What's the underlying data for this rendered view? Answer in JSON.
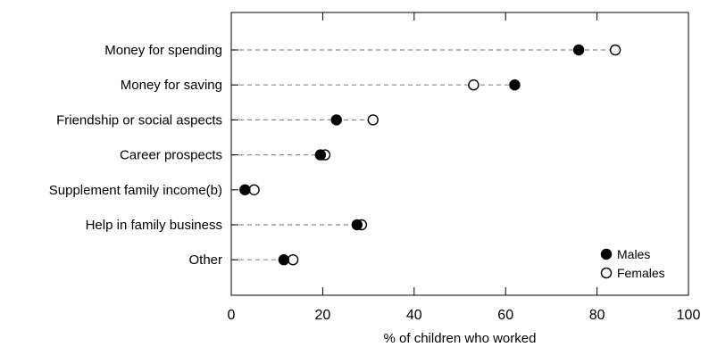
{
  "chart_data": {
    "type": "scatter",
    "subtype": "dot-plot",
    "title": "",
    "xlabel": "% of children who worked",
    "ylabel": "",
    "xlim": [
      0,
      100
    ],
    "xticks": [
      "0",
      "20",
      "40",
      "60",
      "80",
      "100"
    ],
    "grid": false,
    "legend_position": "bottom-right",
    "categories": [
      "Money for spending",
      "Money for saving",
      "Friendship or social aspects",
      "Career prospects",
      "Supplement family income(b)",
      "Help in family business",
      "Other"
    ],
    "series": [
      {
        "name": "Males",
        "marker": "filled-circle",
        "color": "#000000",
        "values": [
          76,
          62,
          23,
          19.5,
          3,
          27.5,
          11.5
        ]
      },
      {
        "name": "Females",
        "marker": "open-circle",
        "color": "#000000",
        "values": [
          84,
          53,
          31,
          20.5,
          5,
          28.5,
          13.5
        ]
      }
    ]
  }
}
